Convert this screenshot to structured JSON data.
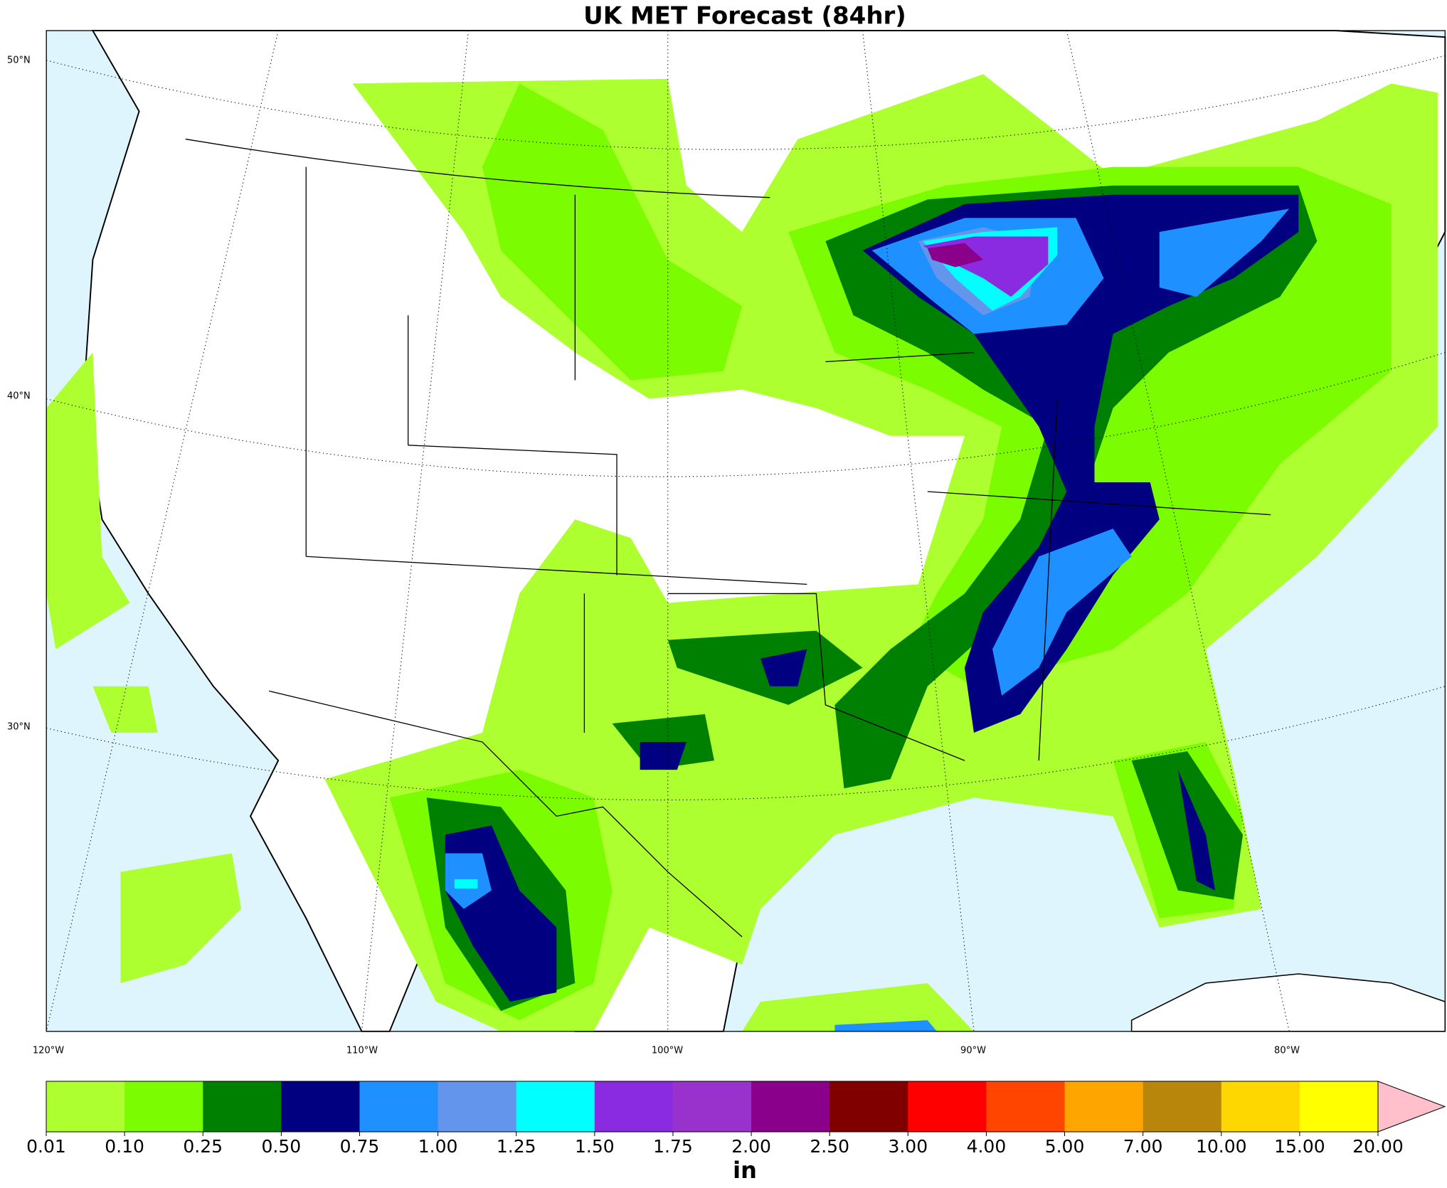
{
  "chart_data": {
    "type": "map",
    "title": "UK MET Forecast (84hr)",
    "lat_labels": [
      "50°N",
      "40°N",
      "30°N"
    ],
    "lon_labels": [
      "120°W",
      "110°W",
      "100°W",
      "90°W",
      "80°W"
    ],
    "colorbar": {
      "label": "in",
      "levels": [
        {
          "value": 0.01,
          "label": "0.01"
        },
        {
          "value": 0.1,
          "label": "0.10"
        },
        {
          "value": 0.25,
          "label": "0.25"
        },
        {
          "value": 0.5,
          "label": "0.50"
        },
        {
          "value": 0.75,
          "label": "0.75"
        },
        {
          "value": 1,
          "label": "1.00"
        },
        {
          "value": 1.25,
          "label": "1.25"
        },
        {
          "value": 1.5,
          "label": "1.50"
        },
        {
          "value": 1.75,
          "label": "1.75"
        },
        {
          "value": 2,
          "label": "2.00"
        },
        {
          "value": 2.5,
          "label": "2.50"
        },
        {
          "value": 3,
          "label": "3.00"
        },
        {
          "value": 4,
          "label": "4.00"
        },
        {
          "value": 5,
          "label": "5.00"
        },
        {
          "value": 7,
          "label": "7.00"
        },
        {
          "value": 10,
          "label": "10.00"
        },
        {
          "value": 15,
          "label": "15.00"
        },
        {
          "value": 20,
          "label": "20.00"
        }
      ],
      "colors": [
        "#adff2f",
        "#7cfc00",
        "#008000",
        "#000080",
        "#1e90ff",
        "#6495ed",
        "#00ffff",
        "#8a2be2",
        "#9932cc",
        "#8b008b",
        "#800000",
        "#ff0000",
        "#ff4500",
        "#ffa500",
        "#b8860b",
        "#ffd700",
        "#ffff00"
      ],
      "extend_color": "#ffc0cb"
    }
  }
}
